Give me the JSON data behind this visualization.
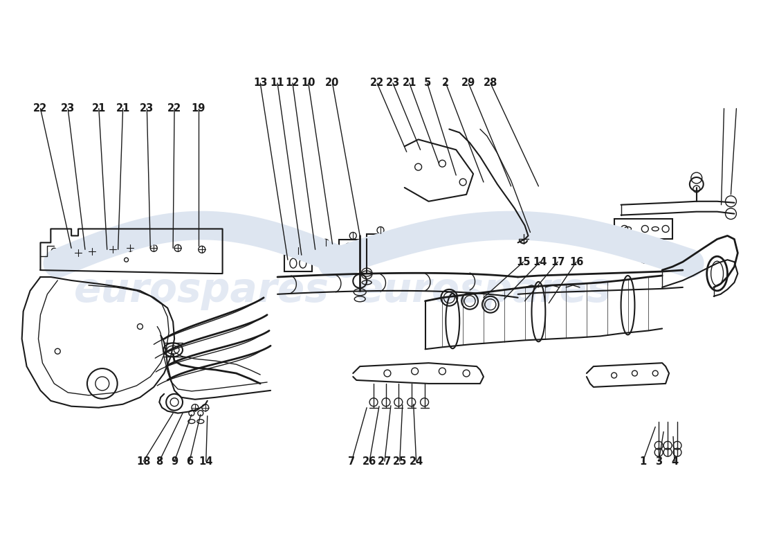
{
  "background_color": "#ffffff",
  "line_color": "#1a1a1a",
  "watermark_color": "#c8d4e8",
  "watermark_text": "eurospares",
  "label_fontsize": 10.5,
  "fig_width": 11.0,
  "fig_height": 8.0
}
